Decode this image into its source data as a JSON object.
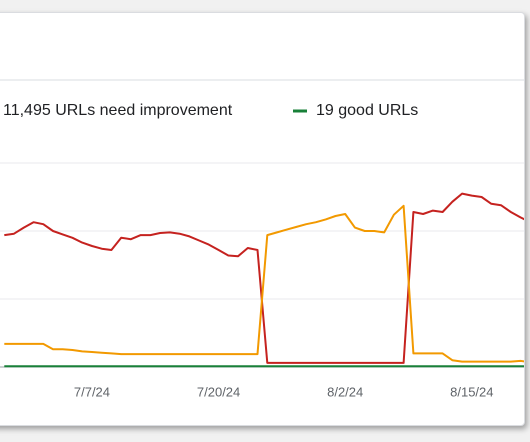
{
  "chart_data": {
    "type": "line",
    "legend": [
      "11,495 URLs need improvement",
      "19 good URLs"
    ],
    "categories": [
      null,
      null,
      null,
      null,
      null,
      null,
      null,
      null,
      null,
      "7/7/24",
      null,
      null,
      null,
      null,
      null,
      null,
      null,
      null,
      null,
      null,
      null,
      null,
      "7/20/24",
      null,
      null,
      null,
      null,
      null,
      null,
      null,
      null,
      null,
      null,
      null,
      null,
      "8/2/24",
      null,
      null,
      null,
      null,
      null,
      null,
      null,
      null,
      null,
      null,
      null,
      null,
      "8/15/24",
      null,
      null,
      null,
      null,
      null,
      null
    ],
    "series": [
      {
        "color": "#c5221f",
        "values": [
          1.94,
          1.96,
          2.05,
          2.13,
          2.1,
          2.0,
          1.95,
          1.9,
          1.83,
          1.78,
          1.74,
          1.72,
          1.9,
          1.88,
          1.94,
          1.94,
          1.97,
          1.98,
          1.96,
          1.92,
          1.86,
          1.8,
          1.72,
          1.64,
          1.63,
          1.75,
          1.72,
          0.06,
          0.06,
          0.06,
          0.06,
          0.06,
          0.06,
          0.06,
          0.06,
          0.06,
          0.06,
          0.06,
          0.06,
          0.06,
          0.06,
          0.06,
          2.28,
          2.25,
          2.3,
          2.28,
          2.43,
          2.55,
          2.52,
          2.5,
          2.4,
          2.38,
          2.28,
          2.2,
          2.13
        ]
      },
      {
        "name": "11,495 URLs need improvement",
        "color": "#f29900",
        "values": [
          0.34,
          0.34,
          0.34,
          0.34,
          0.34,
          0.26,
          0.26,
          0.25,
          0.23,
          0.22,
          0.21,
          0.2,
          0.19,
          0.19,
          0.19,
          0.19,
          0.19,
          0.19,
          0.19,
          0.19,
          0.19,
          0.19,
          0.19,
          0.19,
          0.19,
          0.19,
          0.19,
          1.94,
          1.98,
          2.02,
          2.06,
          2.1,
          2.13,
          2.17,
          2.22,
          2.25,
          2.05,
          2.0,
          2.0,
          1.98,
          2.24,
          2.37,
          0.2,
          0.2,
          0.2,
          0.2,
          0.1,
          0.08,
          0.08,
          0.08,
          0.08,
          0.08,
          0.08,
          0.09,
          0.07
        ]
      },
      {
        "name": "19 good URLs",
        "color": "#188038",
        "values": [
          0.01,
          0.01,
          0.01,
          0.01,
          0.01,
          0.01,
          0.01,
          0.01,
          0.01,
          0.01,
          0.01,
          0.01,
          0.01,
          0.01,
          0.01,
          0.01,
          0.01,
          0.01,
          0.01,
          0.01,
          0.01,
          0.01,
          0.01,
          0.01,
          0.01,
          0.01,
          0.01,
          0.01,
          0.01,
          0.01,
          0.01,
          0.01,
          0.01,
          0.01,
          0.01,
          0.01,
          0.01,
          0.01,
          0.01,
          0.01,
          0.01,
          0.01,
          0.01,
          0.01,
          0.01,
          0.01,
          0.01,
          0.01,
          0.01,
          0.01,
          0.01,
          0.01,
          0.01,
          0.01,
          0.01
        ]
      }
    ],
    "ylim": [
      0,
      3
    ],
    "grid_lines": [
      1,
      2,
      3
    ]
  }
}
